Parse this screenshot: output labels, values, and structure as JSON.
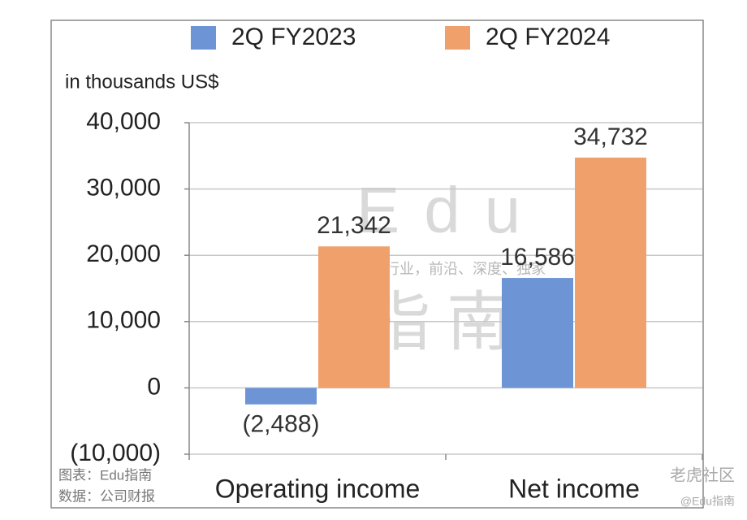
{
  "chart_data": {
    "type": "bar",
    "y_label": "in thousands US$",
    "categories": [
      "Operating income",
      "Net income"
    ],
    "series": [
      {
        "name": "2Q FY2023",
        "color": "#6d95d6",
        "values": [
          -2488,
          16586
        ],
        "value_labels": [
          "(2,488)",
          "16,586"
        ]
      },
      {
        "name": "2Q FY2024",
        "color": "#f0a06a",
        "values": [
          21342,
          34732
        ],
        "value_labels": [
          "21,342",
          "34,732"
        ]
      }
    ],
    "ylim": [
      -10000,
      40000
    ],
    "yticks": [
      {
        "value": -10000,
        "label": "(10,000)"
      },
      0,
      {
        "value": 10000,
        "label": "10,000"
      },
      {
        "value": 20000,
        "label": "20,000"
      },
      {
        "value": 30000,
        "label": "30,000"
      },
      {
        "value": 40000,
        "label": "40,000"
      }
    ],
    "grid": true,
    "legend": "top",
    "watermark": [
      "Edu",
      "指南",
      "教育行业，前沿、深度、独家"
    ],
    "annotations": [
      "图表：Edu指南",
      "数据：公司财报"
    ],
    "credits": [
      "老虎社区",
      "@Edu指南"
    ]
  }
}
